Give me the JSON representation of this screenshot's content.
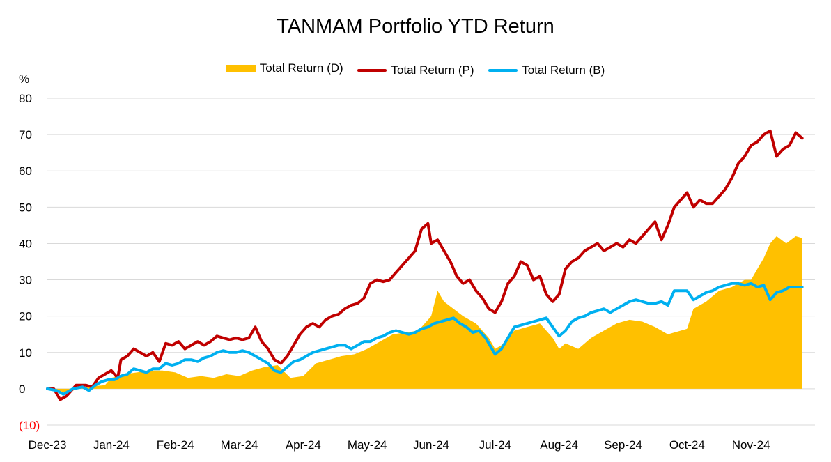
{
  "chart_data": {
    "type": "line",
    "title": "TANMAM Portfolio YTD Return",
    "ylabel": "%",
    "ylim": [
      -10,
      80
    ],
    "yticks": [
      {
        "value": 80,
        "label": "80"
      },
      {
        "value": 70,
        "label": "70"
      },
      {
        "value": 60,
        "label": "60"
      },
      {
        "value": 50,
        "label": "50"
      },
      {
        "value": 40,
        "label": "40"
      },
      {
        "value": 30,
        "label": "30"
      },
      {
        "value": 20,
        "label": "20"
      },
      {
        "value": 10,
        "label": "10"
      },
      {
        "value": 0,
        "label": "0"
      },
      {
        "value": -10,
        "label": "(10)",
        "color": "#FF0000"
      }
    ],
    "xlim": [
      0,
      12
    ],
    "xticks": [
      {
        "value": 0,
        "label": "Dec-23"
      },
      {
        "value": 1,
        "label": "Jan-24"
      },
      {
        "value": 2,
        "label": "Feb-24"
      },
      {
        "value": 3,
        "label": "Mar-24"
      },
      {
        "value": 4,
        "label": "Apr-24"
      },
      {
        "value": 5,
        "label": "May-24"
      },
      {
        "value": 6,
        "label": "Jun-24"
      },
      {
        "value": 7,
        "label": "Jul-24"
      },
      {
        "value": 8,
        "label": "Aug-24"
      },
      {
        "value": 9,
        "label": "Sep-24"
      },
      {
        "value": 10,
        "label": "Oct-24"
      },
      {
        "value": 11,
        "label": "Nov-24"
      }
    ],
    "grid": "horizontal",
    "legend_position": "top",
    "series": [
      {
        "name": "Total Return (D)",
        "kind": "area",
        "color": "#FFC000",
        "points": [
          [
            0,
            0
          ],
          [
            0.3,
            -1
          ],
          [
            0.6,
            0.5
          ],
          [
            0.9,
            1
          ],
          [
            1.0,
            3
          ],
          [
            1.2,
            4
          ],
          [
            1.4,
            4.5
          ],
          [
            1.6,
            5
          ],
          [
            1.8,
            5
          ],
          [
            2.0,
            4.5
          ],
          [
            2.2,
            3
          ],
          [
            2.4,
            3.5
          ],
          [
            2.6,
            3
          ],
          [
            2.8,
            4
          ],
          [
            3.0,
            3.5
          ],
          [
            3.2,
            5
          ],
          [
            3.4,
            6
          ],
          [
            3.6,
            6.5
          ],
          [
            3.8,
            3
          ],
          [
            4.0,
            3.5
          ],
          [
            4.2,
            7
          ],
          [
            4.4,
            8
          ],
          [
            4.6,
            9
          ],
          [
            4.8,
            9.5
          ],
          [
            5.0,
            11
          ],
          [
            5.2,
            13
          ],
          [
            5.4,
            15
          ],
          [
            5.6,
            15.5
          ],
          [
            5.8,
            16
          ],
          [
            6.0,
            20
          ],
          [
            6.1,
            27
          ],
          [
            6.2,
            24
          ],
          [
            6.35,
            22
          ],
          [
            6.5,
            20
          ],
          [
            6.7,
            18
          ],
          [
            6.9,
            14
          ],
          [
            7.0,
            11
          ],
          [
            7.1,
            12
          ],
          [
            7.3,
            16
          ],
          [
            7.5,
            17
          ],
          [
            7.7,
            18
          ],
          [
            7.9,
            14
          ],
          [
            8.0,
            11
          ],
          [
            8.1,
            12.5
          ],
          [
            8.3,
            11
          ],
          [
            8.5,
            14
          ],
          [
            8.7,
            16
          ],
          [
            8.9,
            18
          ],
          [
            9.1,
            19
          ],
          [
            9.3,
            18.5
          ],
          [
            9.5,
            17
          ],
          [
            9.7,
            15
          ],
          [
            9.9,
            16
          ],
          [
            10.0,
            16.5
          ],
          [
            10.1,
            22
          ],
          [
            10.3,
            24
          ],
          [
            10.5,
            27
          ],
          [
            10.7,
            28
          ],
          [
            10.9,
            30
          ],
          [
            11.0,
            30
          ],
          [
            11.1,
            33
          ],
          [
            11.2,
            36
          ],
          [
            11.3,
            40
          ],
          [
            11.4,
            42
          ],
          [
            11.55,
            40
          ],
          [
            11.7,
            42
          ],
          [
            11.8,
            41.5
          ]
        ]
      },
      {
        "name": "Total Return (P)",
        "kind": "line",
        "color": "#C00000",
        "points": [
          [
            0,
            0
          ],
          [
            0.1,
            0
          ],
          [
            0.2,
            -3
          ],
          [
            0.3,
            -2
          ],
          [
            0.45,
            1
          ],
          [
            0.6,
            1
          ],
          [
            0.7,
            0.5
          ],
          [
            0.8,
            3
          ],
          [
            0.9,
            4
          ],
          [
            1.0,
            5
          ],
          [
            1.1,
            3
          ],
          [
            1.15,
            8
          ],
          [
            1.25,
            9
          ],
          [
            1.35,
            11
          ],
          [
            1.45,
            10
          ],
          [
            1.55,
            9
          ],
          [
            1.65,
            10
          ],
          [
            1.75,
            7.5
          ],
          [
            1.85,
            12.5
          ],
          [
            1.95,
            12
          ],
          [
            2.05,
            13
          ],
          [
            2.15,
            11
          ],
          [
            2.25,
            12
          ],
          [
            2.35,
            13
          ],
          [
            2.45,
            12
          ],
          [
            2.55,
            13
          ],
          [
            2.65,
            14.5
          ],
          [
            2.75,
            14
          ],
          [
            2.85,
            13.5
          ],
          [
            2.95,
            14
          ],
          [
            3.05,
            13.5
          ],
          [
            3.15,
            14
          ],
          [
            3.25,
            17
          ],
          [
            3.35,
            13
          ],
          [
            3.45,
            11
          ],
          [
            3.55,
            8
          ],
          [
            3.65,
            7
          ],
          [
            3.75,
            9
          ],
          [
            3.85,
            12
          ],
          [
            3.95,
            15
          ],
          [
            4.05,
            17
          ],
          [
            4.15,
            18
          ],
          [
            4.25,
            17
          ],
          [
            4.35,
            19
          ],
          [
            4.45,
            20
          ],
          [
            4.55,
            20.5
          ],
          [
            4.65,
            22
          ],
          [
            4.75,
            23
          ],
          [
            4.85,
            23.5
          ],
          [
            4.95,
            25
          ],
          [
            5.05,
            29
          ],
          [
            5.15,
            30
          ],
          [
            5.25,
            29.5
          ],
          [
            5.35,
            30
          ],
          [
            5.45,
            32
          ],
          [
            5.55,
            34
          ],
          [
            5.65,
            36
          ],
          [
            5.75,
            38
          ],
          [
            5.85,
            44
          ],
          [
            5.95,
            45.5
          ],
          [
            6.0,
            40
          ],
          [
            6.1,
            41
          ],
          [
            6.2,
            38
          ],
          [
            6.3,
            35
          ],
          [
            6.4,
            31
          ],
          [
            6.5,
            29
          ],
          [
            6.6,
            30
          ],
          [
            6.7,
            27
          ],
          [
            6.8,
            25
          ],
          [
            6.9,
            22
          ],
          [
            7.0,
            21
          ],
          [
            7.1,
            24
          ],
          [
            7.2,
            29
          ],
          [
            7.3,
            31
          ],
          [
            7.4,
            35
          ],
          [
            7.5,
            34
          ],
          [
            7.6,
            30
          ],
          [
            7.7,
            31
          ],
          [
            7.8,
            26
          ],
          [
            7.9,
            24
          ],
          [
            8.0,
            26
          ],
          [
            8.1,
            33
          ],
          [
            8.2,
            35
          ],
          [
            8.3,
            36
          ],
          [
            8.4,
            38
          ],
          [
            8.5,
            39
          ],
          [
            8.6,
            40
          ],
          [
            8.7,
            38
          ],
          [
            8.8,
            39
          ],
          [
            8.9,
            40
          ],
          [
            9.0,
            39
          ],
          [
            9.1,
            41
          ],
          [
            9.2,
            40
          ],
          [
            9.3,
            42
          ],
          [
            9.4,
            44
          ],
          [
            9.5,
            46
          ],
          [
            9.6,
            41
          ],
          [
            9.7,
            45
          ],
          [
            9.8,
            50
          ],
          [
            9.9,
            52
          ],
          [
            10.0,
            54
          ],
          [
            10.1,
            50
          ],
          [
            10.2,
            52
          ],
          [
            10.3,
            51
          ],
          [
            10.4,
            51
          ],
          [
            10.5,
            53
          ],
          [
            10.6,
            55
          ],
          [
            10.7,
            58
          ],
          [
            10.8,
            62
          ],
          [
            10.9,
            64
          ],
          [
            11.0,
            67
          ],
          [
            11.1,
            68
          ],
          [
            11.2,
            70
          ],
          [
            11.3,
            71
          ],
          [
            11.4,
            64
          ],
          [
            11.5,
            66
          ],
          [
            11.6,
            67
          ],
          [
            11.7,
            70.5
          ],
          [
            11.8,
            69
          ]
        ]
      },
      {
        "name": "Total Return (B)",
        "kind": "line",
        "color": "#00B0F0",
        "points": [
          [
            0,
            0
          ],
          [
            0.15,
            -0.5
          ],
          [
            0.25,
            -1.5
          ],
          [
            0.4,
            0
          ],
          [
            0.55,
            0.5
          ],
          [
            0.65,
            -0.5
          ],
          [
            0.75,
            1
          ],
          [
            0.85,
            2
          ],
          [
            0.95,
            2.5
          ],
          [
            1.05,
            2.5
          ],
          [
            1.15,
            3.5
          ],
          [
            1.25,
            4
          ],
          [
            1.35,
            5.5
          ],
          [
            1.45,
            5
          ],
          [
            1.55,
            4.5
          ],
          [
            1.65,
            5.5
          ],
          [
            1.75,
            5.5
          ],
          [
            1.85,
            7
          ],
          [
            1.95,
            6.5
          ],
          [
            2.05,
            7
          ],
          [
            2.15,
            8
          ],
          [
            2.25,
            8
          ],
          [
            2.35,
            7.5
          ],
          [
            2.45,
            8.5
          ],
          [
            2.55,
            9
          ],
          [
            2.65,
            10
          ],
          [
            2.75,
            10.5
          ],
          [
            2.85,
            10
          ],
          [
            2.95,
            10
          ],
          [
            3.05,
            10.5
          ],
          [
            3.15,
            10
          ],
          [
            3.25,
            9
          ],
          [
            3.35,
            8
          ],
          [
            3.45,
            7
          ],
          [
            3.55,
            5
          ],
          [
            3.65,
            4.5
          ],
          [
            3.75,
            6
          ],
          [
            3.85,
            7.5
          ],
          [
            3.95,
            8
          ],
          [
            4.05,
            9
          ],
          [
            4.15,
            10
          ],
          [
            4.25,
            10.5
          ],
          [
            4.35,
            11
          ],
          [
            4.45,
            11.5
          ],
          [
            4.55,
            12
          ],
          [
            4.65,
            12
          ],
          [
            4.75,
            11
          ],
          [
            4.85,
            12
          ],
          [
            4.95,
            13
          ],
          [
            5.05,
            13
          ],
          [
            5.15,
            14
          ],
          [
            5.25,
            14.5
          ],
          [
            5.35,
            15.5
          ],
          [
            5.45,
            16
          ],
          [
            5.55,
            15.5
          ],
          [
            5.65,
            15
          ],
          [
            5.75,
            15.5
          ],
          [
            5.85,
            16.5
          ],
          [
            5.95,
            17
          ],
          [
            6.05,
            18
          ],
          [
            6.15,
            18.5
          ],
          [
            6.25,
            19
          ],
          [
            6.35,
            19.5
          ],
          [
            6.45,
            18
          ],
          [
            6.55,
            17
          ],
          [
            6.65,
            15.5
          ],
          [
            6.75,
            16
          ],
          [
            6.85,
            14
          ],
          [
            6.95,
            11
          ],
          [
            7.0,
            9.5
          ],
          [
            7.1,
            11
          ],
          [
            7.2,
            14
          ],
          [
            7.3,
            17
          ],
          [
            7.4,
            17.5
          ],
          [
            7.5,
            18
          ],
          [
            7.6,
            18.5
          ],
          [
            7.7,
            19
          ],
          [
            7.8,
            19.5
          ],
          [
            7.9,
            17
          ],
          [
            8.0,
            14.5
          ],
          [
            8.1,
            16
          ],
          [
            8.2,
            18.5
          ],
          [
            8.3,
            19.5
          ],
          [
            8.4,
            20
          ],
          [
            8.5,
            21
          ],
          [
            8.6,
            21.5
          ],
          [
            8.7,
            22
          ],
          [
            8.8,
            21
          ],
          [
            8.9,
            22
          ],
          [
            9.0,
            23
          ],
          [
            9.1,
            24
          ],
          [
            9.2,
            24.5
          ],
          [
            9.3,
            24
          ],
          [
            9.4,
            23.5
          ],
          [
            9.5,
            23.5
          ],
          [
            9.6,
            24
          ],
          [
            9.7,
            23
          ],
          [
            9.8,
            27
          ],
          [
            9.9,
            27
          ],
          [
            10.0,
            27
          ],
          [
            10.1,
            24.5
          ],
          [
            10.2,
            25.5
          ],
          [
            10.3,
            26.5
          ],
          [
            10.4,
            27
          ],
          [
            10.5,
            28
          ],
          [
            10.6,
            28.5
          ],
          [
            10.7,
            29
          ],
          [
            10.8,
            29
          ],
          [
            10.9,
            28.5
          ],
          [
            11.0,
            29
          ],
          [
            11.1,
            28
          ],
          [
            11.2,
            28.5
          ],
          [
            11.3,
            24.5
          ],
          [
            11.4,
            26.5
          ],
          [
            11.5,
            27
          ],
          [
            11.6,
            28
          ],
          [
            11.7,
            28
          ],
          [
            11.8,
            28
          ]
        ]
      }
    ]
  }
}
